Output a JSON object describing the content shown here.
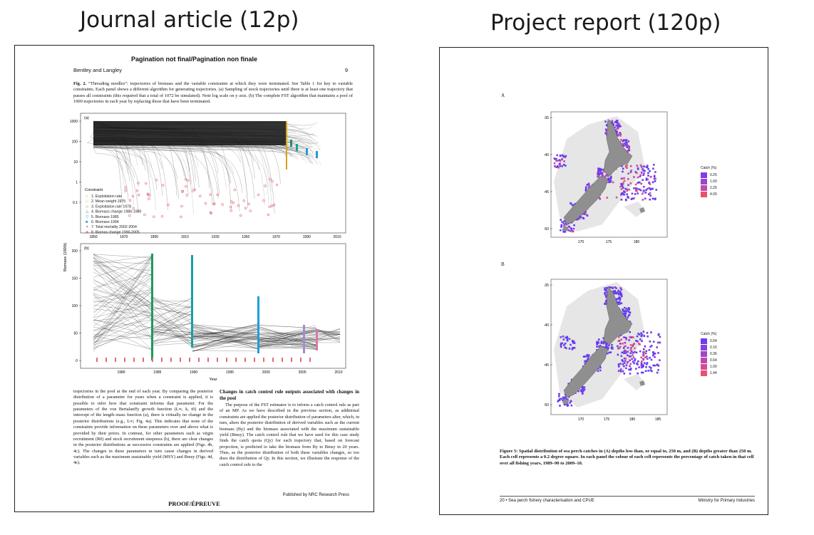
{
  "headings": {
    "left": "Journal article (12p)",
    "right": "Project report (120p)"
  },
  "journal": {
    "banner": "Pagination not final/Pagination non finale",
    "author": "Bentley and Langley",
    "page_number": "9",
    "caption_label": "Fig. 2.",
    "caption_text": "“Threading needles”: trajectories of biomass and the variable constraints at which they were terminated. See Table 1 for key to variable constraints. Each panel shows a different algorithm for generating trajectories. (a) Sampling of stock trajectories until there is at least one trajectory that passes all constraints (this required that a total of 1072 be simulated). Note log scale on y axis. (b) The complete FST algorithm that maintains a pool of 1000 trajectories in each year by replacing those that have been terminated.",
    "panel_a_label": "(a)",
    "panel_b_label": "(b)",
    "y_axis_label": "Biomass (1000t)",
    "x_axis_label": "Year",
    "panel_a_yticks": [
      "1000",
      "100",
      "10",
      "1",
      "0.1"
    ],
    "panel_a_xticks": [
      "1850",
      "1870",
      "1890",
      "1910",
      "1930",
      "1950",
      "1970",
      "1990",
      "2010"
    ],
    "panel_b_yticks": [
      "200",
      "150",
      "100",
      "50",
      "0"
    ],
    "panel_b_xticks": [
      "1980",
      "1985",
      "1990",
      "1995",
      "2000",
      "2005",
      "2010"
    ],
    "legend_title": "Constraint",
    "legend_items": [
      {
        "symbol": "○",
        "color": "#e06a7a",
        "label": "1. Exploitation rate"
      },
      {
        "symbol": "□",
        "color": "#d9a21b",
        "label": "2. Mean weight 1975"
      },
      {
        "symbol": "◇",
        "color": "#6aa84f",
        "label": "3. Exploitation rate 1978"
      },
      {
        "symbol": "△",
        "color": "#2e8b57",
        "label": "4. Biomass change 1986-1980"
      },
      {
        "symbol": "▽",
        "color": "#19a0a0",
        "label": "5. Biomass 1985"
      },
      {
        "symbol": "■",
        "color": "#1e9fd8",
        "label": "6. Biomass 1994"
      },
      {
        "symbol": "✶",
        "color": "#8a8a8a",
        "label": "7. Total mortality 2002-2004"
      },
      {
        "symbol": "◆",
        "color": "#d779a6",
        "label": "8. Biomas change 1990-2005"
      }
    ],
    "col_left": "trajectories in the pool at the end of each year. By comparing the posterior distribution of a parameter for years when a constraint is applied, it is possible to infer how that constraint informs that parameter. For the parameters of the von Bertalanffy growth function (L∞, k, t0) and the intercept of the length–mass function (a), there is virtually no change in the posterior distributions (e.g., L∞; Fig. 4a). This indicates that none of the constraints provide information on these parameters over and above what is provided by their priors. In contrast, for other parameters such as virgin recruitment (R0) and stock recruitment steepness (h), there are clear changes in the posterior distributions as successive constraints are applied (Figs. 4b, 4c). The changes in these parameters in turn cause changes in derived variables such as the maximum sustainable yield (MSY) and Bmsy (Figs. 4d, 4e).",
    "col_right_heading": "Changes in catch control rule outputs associated with changes in the pool",
    "col_right": "The purpose of the FST estimator is to inform a catch control rule as part of an MP. As we have described in the previous section, as additional constraints are applied the posterior distribution of parameters alter, which, in turn, alters the posterior distribution of derived variables such as the current biomass (By) and the biomass associated with the maximum sustainable yield (Bmsy). The catch control rule that we have used for this case study finds the catch quota (Qy) for each trajectory that, based on forecast projection, is predicted to take the biomass from By to Bmsy in 20 years. Thus, as the posterior distribution of both these variables changes, so too does the distribution of Qy. In this section, we illustrate the response of the catch control rule to the",
    "published": "Published by NRC Research Press",
    "proof": "PROOF/ÉPREUVE"
  },
  "report": {
    "panel_a_letter": "A",
    "panel_b_letter": "B",
    "yticks": [
      "-35",
      "-40",
      "-45",
      "-50"
    ],
    "xticks_a": [
      "170",
      "175",
      "180"
    ],
    "xticks_b": [
      "170",
      "175",
      "180",
      "185"
    ],
    "legend_a": {
      "title": "Catch (%)",
      "items": [
        {
          "label": "0.25",
          "color": "#7b3fe4"
        },
        {
          "label": "1.00",
          "color": "#9a44d0"
        },
        {
          "label": "2.25",
          "color": "#c54aa8"
        },
        {
          "label": "4.00",
          "color": "#e8506e"
        }
      ]
    },
    "legend_b": {
      "title": "Catch (%)",
      "items": [
        {
          "label": "0.04",
          "color": "#6b3df0"
        },
        {
          "label": "0.16",
          "color": "#8442de"
        },
        {
          "label": "0.36",
          "color": "#9f46c8"
        },
        {
          "label": "0.64",
          "color": "#bb4ab0"
        },
        {
          "label": "1.00",
          "color": "#d54d92"
        },
        {
          "label": "1.44",
          "color": "#ec5070"
        }
      ]
    },
    "caption": "Figure 5: Spatial distribution of sea perch catches in (A) depths less than, or equal to, 250 m, and (B) depths greater than 250 m. Each cell represents a 0.2 degree square. In each panel the colour of each cell represents the percentage of catch taken in that cell over all fishing years, 1989–90 to 2009–10.",
    "footer_left": "20 • Sea perch fishery characterisation and CPUE",
    "footer_right": "Ministry for Primary Industries"
  }
}
